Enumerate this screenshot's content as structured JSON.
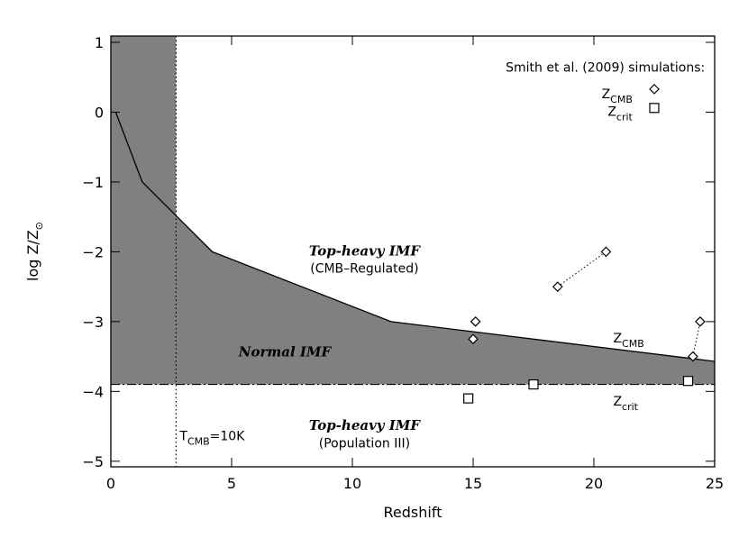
{
  "chart_data": {
    "type": "line",
    "x_label": "Redshift",
    "y_label": {
      "text": "log Z/Z",
      "sub": "⊙"
    },
    "xlim": [
      0,
      25
    ],
    "ylim": [
      -5.08,
      1.09
    ],
    "xticks": [
      0,
      5,
      10,
      15,
      20,
      25
    ],
    "yticks": [
      {
        "value": -5,
        "label": "−5"
      },
      {
        "value": -4,
        "label": "−4"
      },
      {
        "value": -3,
        "label": "−3"
      },
      {
        "value": -2,
        "label": "−2"
      },
      {
        "value": -1,
        "label": "−1"
      },
      0,
      1
    ],
    "shade_color": "#808080",
    "z_cmb_curve": {
      "x": [
        0.2,
        1.3,
        4.2,
        11.6,
        25
      ],
      "y": [
        0.0,
        -1.0,
        -2.0,
        -3.0,
        -3.57
      ]
    },
    "z_crit_level": -3.9,
    "t_cmb_redshift": 2.7,
    "diamonds": {
      "x": [
        15.1,
        15.0,
        18.5,
        20.5,
        24.1,
        24.4
      ],
      "y": [
        -3.0,
        -3.25,
        -2.5,
        -2.0,
        -3.5,
        -3.0
      ]
    },
    "squares": {
      "x": [
        14.8,
        17.5,
        23.9
      ],
      "y": [
        -4.1,
        -3.9,
        -3.85
      ]
    },
    "links": [
      {
        "x": [
          18.5,
          20.5
        ],
        "y": [
          -2.5,
          -2.0
        ]
      },
      {
        "x": [
          24.1,
          24.4
        ],
        "y": [
          -3.5,
          -3.0
        ]
      }
    ],
    "legend_title": "Smith et al. (2009) simulations:",
    "legend_diamond": {
      "text": "Z",
      "sub": "CMB"
    },
    "legend_square": {
      "text": "Z",
      "sub": "crit"
    },
    "annotations": {
      "top_heavy_cmb": "Top-heavy IMF",
      "cmb_regulated": "(CMB–Regulated)",
      "normal": "Normal IMF",
      "top_heavy_pop3": "Top-heavy IMF",
      "population3": "(Population III)",
      "curve_label": {
        "text": "Z",
        "sub": "CMB"
      },
      "crit_label": {
        "text": "Z",
        "sub": "crit"
      },
      "t_cmb": {
        "text": "T",
        "sub": "CMB",
        "after": "=10K"
      }
    }
  }
}
